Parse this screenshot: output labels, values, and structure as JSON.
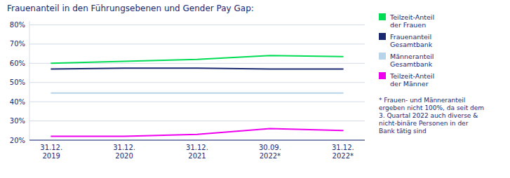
{
  "chart_data": {
    "type": "line",
    "title": "Frauenanteil in den Führungsebenen und Gender Pay Gap:",
    "categories": [
      "31.12.\n2019",
      "31.12.\n2020",
      "31.12.\n2021",
      "30.09.\n2022*",
      "31.12.\n2022*"
    ],
    "series": [
      {
        "name": "Teilzeit-Anteil\nder Frauen",
        "color": "#00dd55",
        "values": [
          60,
          61,
          62,
          64,
          63.5
        ]
      },
      {
        "name": "Frauenanteil\nGesamtbank",
        "color": "#1a2870",
        "values": [
          57,
          57.5,
          57.5,
          57,
          57
        ]
      },
      {
        "name": "Männeranteil\nGesamtbank",
        "color": "#b8d4e8",
        "values": [
          44.5,
          44.5,
          44.5,
          44.5,
          44.5
        ]
      },
      {
        "name": "Teilzeit-Anteil\nder Männer",
        "color": "#ee00ee",
        "values": [
          22,
          22,
          23,
          26,
          25
        ]
      }
    ],
    "annotations": [
      "* Frauen- und Männeranteil\nergeben nicht 100%, da seit dem\n3. Quartal 2022 auch diverse &\nnicht-binäre Personen in der\nBank tätig sind"
    ],
    "ylim": [
      20,
      82
    ],
    "yticks": [
      {
        "value": 20,
        "label": "20%"
      },
      {
        "value": 30,
        "label": "30%"
      },
      {
        "value": 40,
        "label": "40%"
      },
      {
        "value": 50,
        "label": "50%"
      },
      {
        "value": 60,
        "label": "60%"
      },
      {
        "value": 70,
        "label": "70%"
      },
      {
        "value": 80,
        "label": "80%"
      }
    ],
    "grid": true,
    "legend": "right"
  }
}
